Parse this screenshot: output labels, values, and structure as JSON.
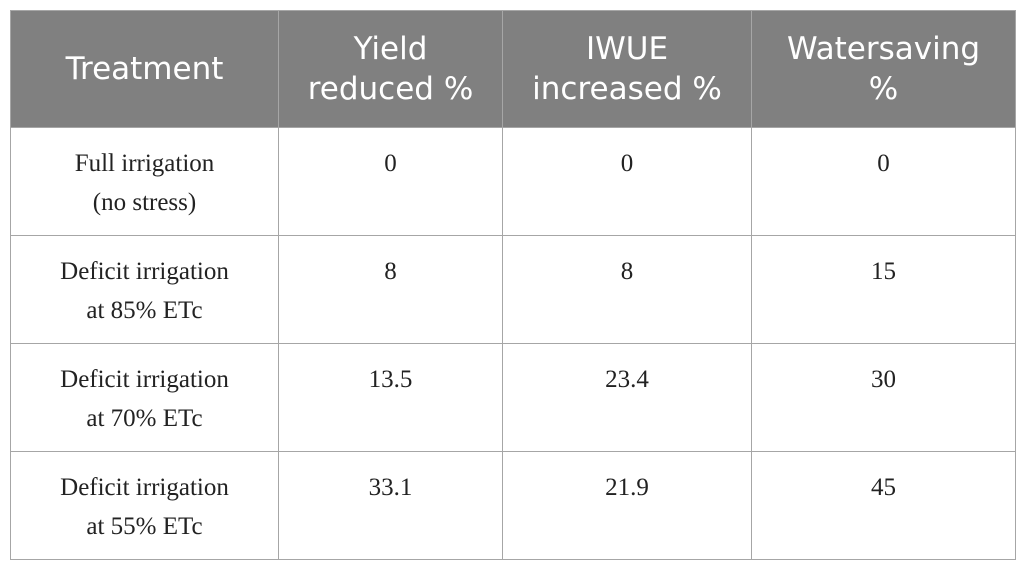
{
  "table": {
    "header": [
      "Treatment",
      "Yield\nreduced %",
      "IWUE\nincreased %",
      "Watersaving\n%"
    ],
    "rows": [
      [
        "Full irrigation\n(no stress)",
        "0",
        "0",
        "0"
      ],
      [
        "Deficit irrigation\nat 85% ETc",
        "8",
        "8",
        "15"
      ],
      [
        "Deficit irrigation\nat 70% ETc",
        "13.5",
        "23.4",
        "30"
      ],
      [
        "Deficit irrigation\nat 55% ETc",
        "33.1",
        "21.9",
        "45"
      ]
    ]
  }
}
